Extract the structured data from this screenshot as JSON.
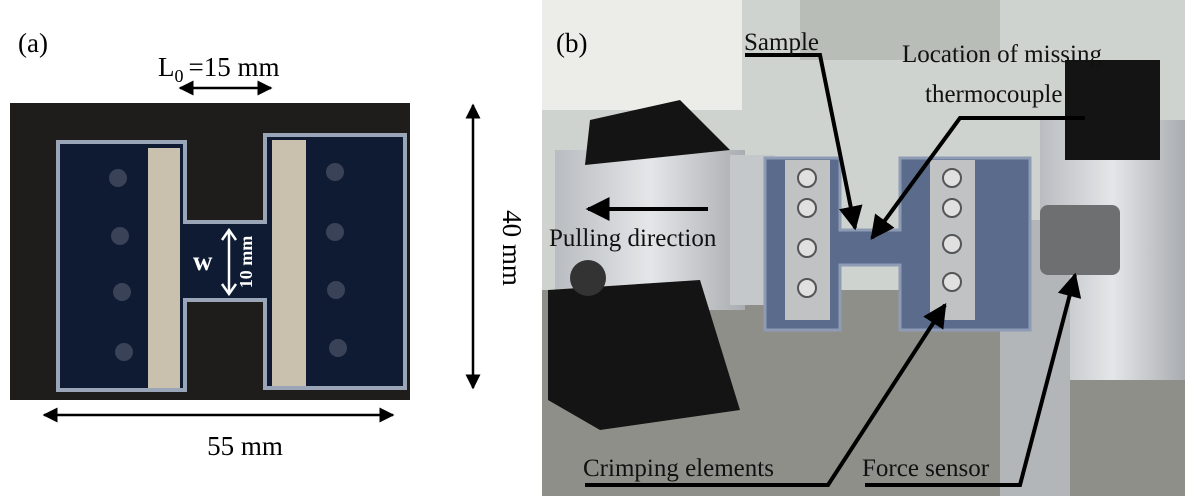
{
  "panel_a": {
    "label": "(a)",
    "gauge_length": {
      "symbol": "L",
      "subscript": "0",
      "value": "=15 mm"
    },
    "width_symbol": "w",
    "width": "10 mm",
    "height": "40 mm",
    "length": "55 mm"
  },
  "panel_b": {
    "label": "(b)",
    "annotations": [
      "Sample",
      "Location of missing",
      "thermocouple",
      "Pulling direction",
      "Crimping elements",
      "Force sensor"
    ]
  }
}
